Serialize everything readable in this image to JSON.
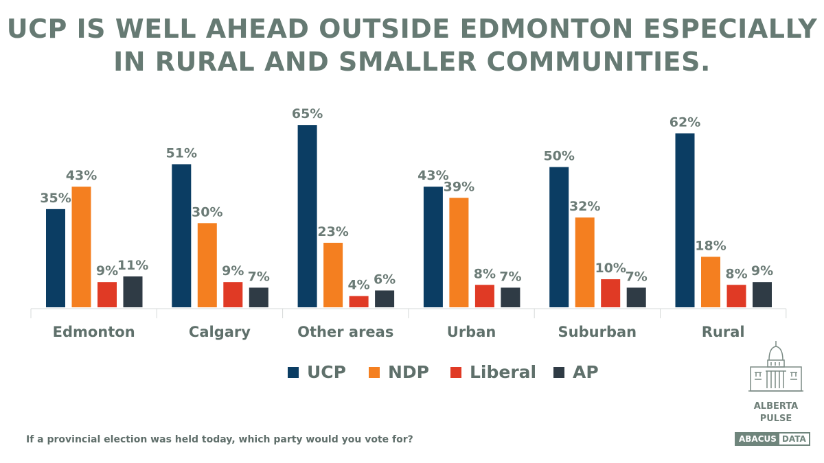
{
  "title_line1": "UCP IS WELL AHEAD OUTSIDE EDMONTON ESPECIALLY",
  "title_line2": "IN RURAL AND SMALLER COMMUNITIES.",
  "question": "If a provincial election was held today, which party would you vote for?",
  "logo": {
    "line1": "ALBERTA",
    "line2": "PULSE",
    "brand_a": "ABACUS",
    "brand_b": "DATA"
  },
  "chart_data": {
    "type": "bar",
    "categories": [
      "Edmonton",
      "Calgary",
      "Other areas",
      "Urban",
      "Suburban",
      "Rural"
    ],
    "series": [
      {
        "name": "UCP",
        "color": "#0b3d63",
        "values": [
          35,
          51,
          65,
          43,
          50,
          62
        ]
      },
      {
        "name": "NDP",
        "color": "#f47f20",
        "values": [
          43,
          30,
          23,
          39,
          32,
          18
        ]
      },
      {
        "name": "Liberal",
        "color": "#e03a25",
        "values": [
          9,
          9,
          4,
          8,
          10,
          8
        ]
      },
      {
        "name": "AP",
        "color": "#2f3b45",
        "values": [
          11,
          7,
          6,
          7,
          7,
          9
        ]
      }
    ],
    "value_format": "percent",
    "legend_position": "bottom",
    "grid": false
  }
}
